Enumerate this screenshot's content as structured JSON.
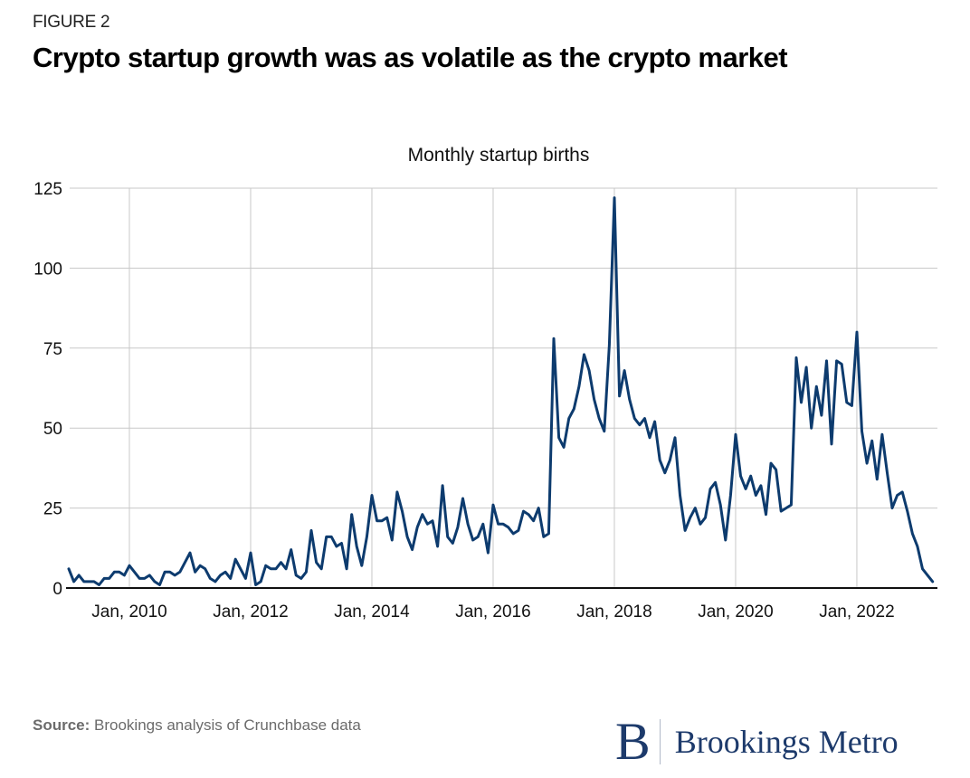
{
  "header": {
    "figure_label": "FIGURE 2",
    "title": "Crypto startup growth was as volatile as the crypto market"
  },
  "footer": {
    "source_label": "Source:",
    "source_text": " Brookings analysis of Crunchbase data",
    "logo_mark": "B",
    "logo_text": "Brookings Metro"
  },
  "colors": {
    "line": "#0d3b6e",
    "grid": "#c8c8c8",
    "axis": "#111111",
    "logo": "#1d3a6b"
  },
  "chart_data": {
    "type": "line",
    "title": "Monthly startup births",
    "xlabel": "",
    "ylabel": "",
    "start": "2009-01",
    "frequency": "monthly",
    "ylim": [
      0,
      125
    ],
    "yticks": [
      0,
      25,
      50,
      75,
      100,
      125
    ],
    "xticks": [
      {
        "label": "Jan, 2010",
        "month_index": 12
      },
      {
        "label": "Jan, 2012",
        "month_index": 36
      },
      {
        "label": "Jan, 2014",
        "month_index": 60
      },
      {
        "label": "Jan, 2016",
        "month_index": 84
      },
      {
        "label": "Jan, 2018",
        "month_index": 108
      },
      {
        "label": "Jan, 2020",
        "month_index": 132
      },
      {
        "label": "Jan, 2022",
        "month_index": 156
      }
    ],
    "grid": true,
    "legend": "none",
    "series": [
      {
        "name": "Monthly startup births",
        "values": [
          6,
          2,
          4,
          2,
          2,
          2,
          1,
          3,
          3,
          5,
          5,
          4,
          7,
          5,
          3,
          3,
          4,
          2,
          1,
          5,
          5,
          4,
          5,
          8,
          11,
          5,
          7,
          6,
          3,
          2,
          4,
          5,
          3,
          9,
          6,
          3,
          11,
          1,
          2,
          7,
          6,
          6,
          8,
          6,
          12,
          4,
          3,
          5,
          18,
          8,
          6,
          16,
          16,
          13,
          14,
          6,
          23,
          13,
          7,
          16,
          29,
          21,
          21,
          22,
          15,
          30,
          24,
          16,
          12,
          19,
          23,
          20,
          21,
          13,
          32,
          16,
          14,
          19,
          28,
          20,
          15,
          16,
          20,
          11,
          26,
          20,
          20,
          19,
          17,
          18,
          24,
          23,
          21,
          25,
          16,
          17,
          78,
          47,
          44,
          53,
          56,
          63,
          73,
          68,
          59,
          53,
          49,
          76,
          122,
          60,
          68,
          59,
          53,
          51,
          53,
          47,
          52,
          40,
          36,
          40,
          47,
          29,
          18,
          22,
          25,
          20,
          22,
          31,
          33,
          26,
          15,
          29,
          48,
          35,
          31,
          35,
          29,
          32,
          23,
          39,
          37,
          24,
          25,
          26,
          72,
          58,
          69,
          50,
          63,
          54,
          71,
          45,
          71,
          70,
          58,
          57,
          80,
          49,
          39,
          46,
          34,
          48,
          36,
          25,
          29,
          30,
          24,
          17,
          13,
          6,
          4,
          2
        ]
      }
    ]
  }
}
